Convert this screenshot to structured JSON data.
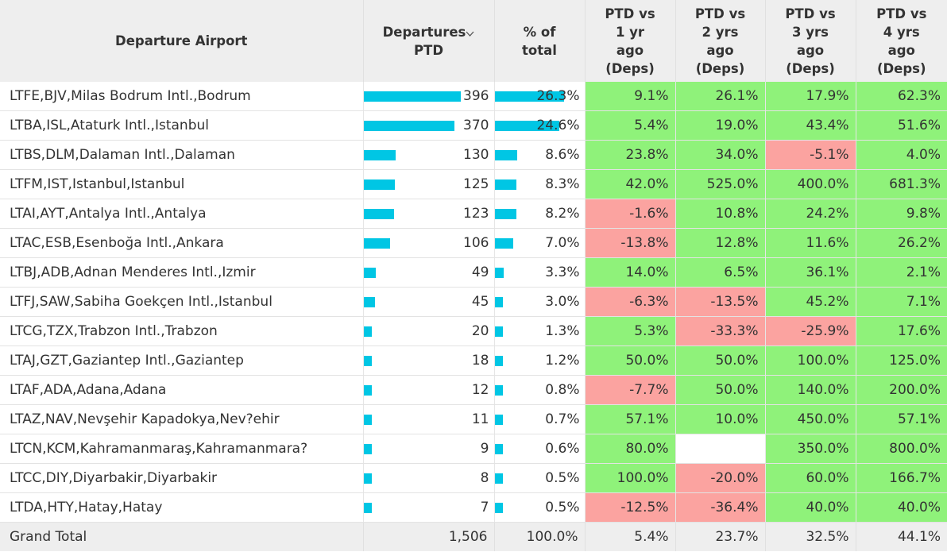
{
  "header": {
    "airport": "Departure Airport",
    "departures_line1": "Departures",
    "departures_line2": "PTD",
    "pct_total_line1": "% of",
    "pct_total_line2": "total",
    "vs1": [
      "PTD vs",
      "1 yr",
      "ago",
      "(Deps)"
    ],
    "vs2": [
      "PTD vs",
      "2 yrs",
      "ago",
      "(Deps)"
    ],
    "vs3": [
      "PTD vs",
      "3 yrs",
      "ago",
      "(Deps)"
    ],
    "vs4": [
      "PTD vs",
      "4 yrs",
      "ago",
      "(Deps)"
    ],
    "sort_icon": "chevron-down-icon"
  },
  "colors": {
    "bar": "#00c6e4",
    "positive": "#8ff27a",
    "negative": "#fba3a0",
    "header_bg": "#eeeeee"
  },
  "rows": [
    {
      "airport": "LTFE,BJV,Milas Bodrum Intl.,Bodrum",
      "departures": "396",
      "pct_total": "26.3%",
      "vs1": "9.1%",
      "vs2": "26.1%",
      "vs3": "17.9%",
      "vs4": "62.3%"
    },
    {
      "airport": "LTBA,ISL,Ataturk Intl.,Istanbul",
      "departures": "370",
      "pct_total": "24.6%",
      "vs1": "5.4%",
      "vs2": "19.0%",
      "vs3": "43.4%",
      "vs4": "51.6%"
    },
    {
      "airport": "LTBS,DLM,Dalaman Intl.,Dalaman",
      "departures": "130",
      "pct_total": "8.6%",
      "vs1": "23.8%",
      "vs2": "34.0%",
      "vs3": "-5.1%",
      "vs4": "4.0%"
    },
    {
      "airport": "LTFM,IST,Istanbul,Istanbul",
      "departures": "125",
      "pct_total": "8.3%",
      "vs1": "42.0%",
      "vs2": "525.0%",
      "vs3": "400.0%",
      "vs4": "681.3%"
    },
    {
      "airport": "LTAI,AYT,Antalya Intl.,Antalya",
      "departures": "123",
      "pct_total": "8.2%",
      "vs1": "-1.6%",
      "vs2": "10.8%",
      "vs3": "24.2%",
      "vs4": "9.8%"
    },
    {
      "airport": "LTAC,ESB,Esenboğa Intl.,Ankara",
      "departures": "106",
      "pct_total": "7.0%",
      "vs1": "-13.8%",
      "vs2": "12.8%",
      "vs3": "11.6%",
      "vs4": "26.2%"
    },
    {
      "airport": "LTBJ,ADB,Adnan Menderes Intl.,Izmir",
      "departures": "49",
      "pct_total": "3.3%",
      "vs1": "14.0%",
      "vs2": "6.5%",
      "vs3": "36.1%",
      "vs4": "2.1%"
    },
    {
      "airport": "LTFJ,SAW,Sabiha Goekçen Intl.,Istanbul",
      "departures": "45",
      "pct_total": "3.0%",
      "vs1": "-6.3%",
      "vs2": "-13.5%",
      "vs3": "45.2%",
      "vs4": "7.1%"
    },
    {
      "airport": "LTCG,TZX,Trabzon Intl.,Trabzon",
      "departures": "20",
      "pct_total": "1.3%",
      "vs1": "5.3%",
      "vs2": "-33.3%",
      "vs3": "-25.9%",
      "vs4": "17.6%"
    },
    {
      "airport": "LTAJ,GZT,Gaziantep Intl.,Gaziantep",
      "departures": "18",
      "pct_total": "1.2%",
      "vs1": "50.0%",
      "vs2": "50.0%",
      "vs3": "100.0%",
      "vs4": "125.0%"
    },
    {
      "airport": "LTAF,ADA,Adana,Adana",
      "departures": "12",
      "pct_total": "0.8%",
      "vs1": "-7.7%",
      "vs2": "50.0%",
      "vs3": "140.0%",
      "vs4": "200.0%"
    },
    {
      "airport": "LTAZ,NAV,Nevşehir Kapadokya,Nev?ehir",
      "departures": "11",
      "pct_total": "0.7%",
      "vs1": "57.1%",
      "vs2": "10.0%",
      "vs3": "450.0%",
      "vs4": "57.1%"
    },
    {
      "airport": "LTCN,KCM,Kahramanmaraş,Kahramanmara?",
      "departures": "9",
      "pct_total": "0.6%",
      "vs1": "80.0%",
      "vs2": "",
      "vs3": "350.0%",
      "vs4": "800.0%"
    },
    {
      "airport": "LTCC,DIY,Diyarbakir,Diyarbakir",
      "departures": "8",
      "pct_total": "0.5%",
      "vs1": "100.0%",
      "vs2": "-20.0%",
      "vs3": "60.0%",
      "vs4": "166.7%"
    },
    {
      "airport": "LTDA,HTY,Hatay,Hatay",
      "departures": "7",
      "pct_total": "0.5%",
      "vs1": "-12.5%",
      "vs2": "-36.4%",
      "vs3": "40.0%",
      "vs4": "40.0%"
    }
  ],
  "total": {
    "label": "Grand Total",
    "departures": "1,506",
    "pct_total": "100.0%",
    "vs1": "5.4%",
    "vs2": "23.7%",
    "vs3": "32.5%",
    "vs4": "44.1%"
  }
}
